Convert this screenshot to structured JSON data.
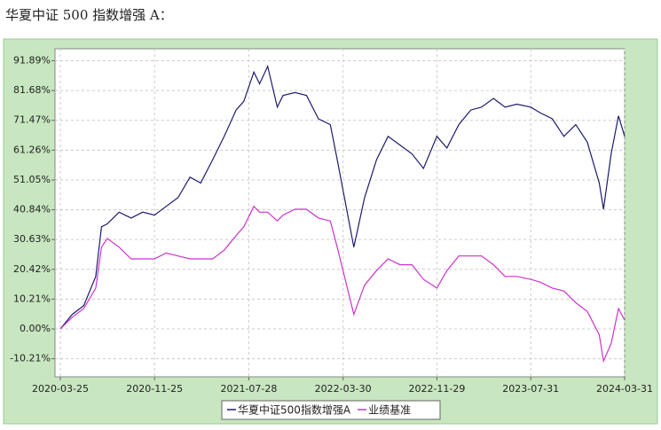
{
  "chart_data": {
    "type": "line",
    "title": "华夏中证 500 指数增强 A：",
    "x": [
      "2020-03-25",
      "2020-04-25",
      "2020-05-25",
      "2020-06-25",
      "2020-07-10",
      "2020-07-25",
      "2020-08-25",
      "2020-09-25",
      "2020-10-25",
      "2020-11-25",
      "2020-12-25",
      "2021-01-25",
      "2021-02-25",
      "2021-03-25",
      "2021-04-25",
      "2021-05-25",
      "2021-06-25",
      "2021-07-15",
      "2021-08-10",
      "2021-08-25",
      "2021-09-15",
      "2021-10-10",
      "2021-10-25",
      "2021-11-25",
      "2021-12-25",
      "2022-01-25",
      "2022-02-25",
      "2022-03-15",
      "2022-04-27",
      "2022-05-25",
      "2022-06-25",
      "2022-07-25",
      "2022-08-25",
      "2022-09-25",
      "2022-10-25",
      "2022-11-29",
      "2022-12-25",
      "2023-01-25",
      "2023-02-25",
      "2023-03-25",
      "2023-04-25",
      "2023-05-25",
      "2023-06-25",
      "2023-07-31",
      "2023-08-25",
      "2023-09-25",
      "2023-10-25",
      "2023-11-25",
      "2023-12-25",
      "2024-01-25",
      "2024-02-05",
      "2024-02-25",
      "2024-03-15",
      "2024-03-31"
    ],
    "series": [
      {
        "name": "华夏中证500指数增强A",
        "color": "#1c1c6e",
        "values": [
          0,
          5,
          8,
          18,
          35,
          36,
          40,
          38,
          40,
          39,
          42,
          45,
          52,
          50,
          58,
          66,
          75,
          78,
          88,
          84,
          90,
          76,
          80,
          81,
          80,
          72,
          70,
          58,
          28,
          45,
          58,
          66,
          63,
          60,
          55,
          66,
          62,
          70,
          75,
          76,
          79,
          76,
          77,
          76,
          74,
          72,
          66,
          70,
          64,
          50,
          41,
          60,
          73,
          66
        ]
      },
      {
        "name": "业绩基准",
        "color": "#cc33cc",
        "values": [
          0,
          4,
          7,
          14,
          28,
          31,
          28,
          24,
          24,
          24,
          26,
          25,
          24,
          24,
          24,
          27,
          32,
          35,
          42,
          40,
          40,
          37,
          39,
          41,
          41,
          38,
          37,
          28,
          5,
          15,
          20,
          24,
          22,
          22,
          17,
          14,
          20,
          25,
          25,
          25,
          22,
          18,
          18,
          17,
          16,
          14,
          13,
          9,
          6,
          -2,
          -11,
          -5,
          7,
          3
        ]
      }
    ],
    "xlim": [
      "2020-03-25",
      "2024-03-31"
    ],
    "xticks": [
      "2020-03-25",
      "2020-11-25",
      "2021-07-28",
      "2022-03-30",
      "2022-11-29",
      "2023-07-31",
      "2024-03-31"
    ],
    "ylim": [
      -16.4,
      96.0
    ],
    "yticks": [
      {
        "value": -10.21,
        "label": "-10.21%"
      },
      {
        "value": 0,
        "label": "0.00%"
      },
      {
        "value": 10.21,
        "label": "10.21%"
      },
      {
        "value": 20.42,
        "label": "20.42%"
      },
      {
        "value": 30.63,
        "label": "30.63%"
      },
      {
        "value": 40.84,
        "label": "40.84%"
      },
      {
        "value": 51.05,
        "label": "51.05%"
      },
      {
        "value": 61.26,
        "label": "61.26%"
      },
      {
        "value": 71.47,
        "label": "71.47%"
      },
      {
        "value": 81.68,
        "label": "81.68%"
      },
      {
        "value": 91.89,
        "label": "91.89%"
      }
    ],
    "grid": true
  }
}
